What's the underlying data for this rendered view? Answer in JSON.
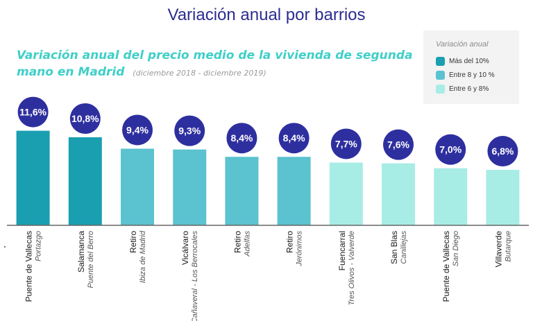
{
  "header": {
    "title": "Variación anual por barrios"
  },
  "chart_data": {
    "type": "bar",
    "title": "Variación anual del precio medio de la vivienda de segunda mano en Madrid",
    "subtitle": "(diciembre 2018 - diciembre 2019)",
    "xlabel": "",
    "ylabel": "",
    "ylim": [
      0,
      12.5
    ],
    "grid": false,
    "legend_position": "top-right",
    "legend": {
      "title": "Variación anual",
      "items": [
        {
          "label": "Más del 10%",
          "color": "#1a9fb1"
        },
        {
          "label": "Entre 8 y 10 %",
          "color": "#5bc2cf"
        },
        {
          "label": "Entre 6 y 8%",
          "color": "#a8ece6"
        }
      ]
    },
    "categories": [
      {
        "district": "Puente de Vallecas",
        "neighborhood": "Portazgo"
      },
      {
        "district": "Salamanca",
        "neighborhood": "Puente del Berro"
      },
      {
        "district": "Retiro",
        "neighborhood": "Ibiza de Madrid"
      },
      {
        "district": "Vicálvaro",
        "neighborhood": "El Cañaveral - Los Berrocales"
      },
      {
        "district": "Retiro",
        "neighborhood": "Adelfas"
      },
      {
        "district": "Retiro",
        "neighborhood": "Jerónimos"
      },
      {
        "district": "Fuencarral",
        "neighborhood": "Tres Olivos - Valverde"
      },
      {
        "district": "San Blas",
        "neighborhood": "Canillejas"
      },
      {
        "district": "Puente de Vallecas",
        "neighborhood": "San Diego"
      },
      {
        "district": "Villaverde",
        "neighborhood": "Butarque"
      }
    ],
    "values": [
      11.6,
      10.8,
      9.4,
      9.3,
      8.4,
      8.4,
      7.7,
      7.6,
      7.0,
      6.8
    ],
    "value_labels": [
      "11,6%",
      "10,8%",
      "9,4%",
      "9,3%",
      "8,4%",
      "8,4%",
      "7,7%",
      "7,6%",
      "7,0%",
      "6,8%"
    ],
    "label_bubble_color": "#2e2f9f",
    "axis_color": "#666666"
  }
}
